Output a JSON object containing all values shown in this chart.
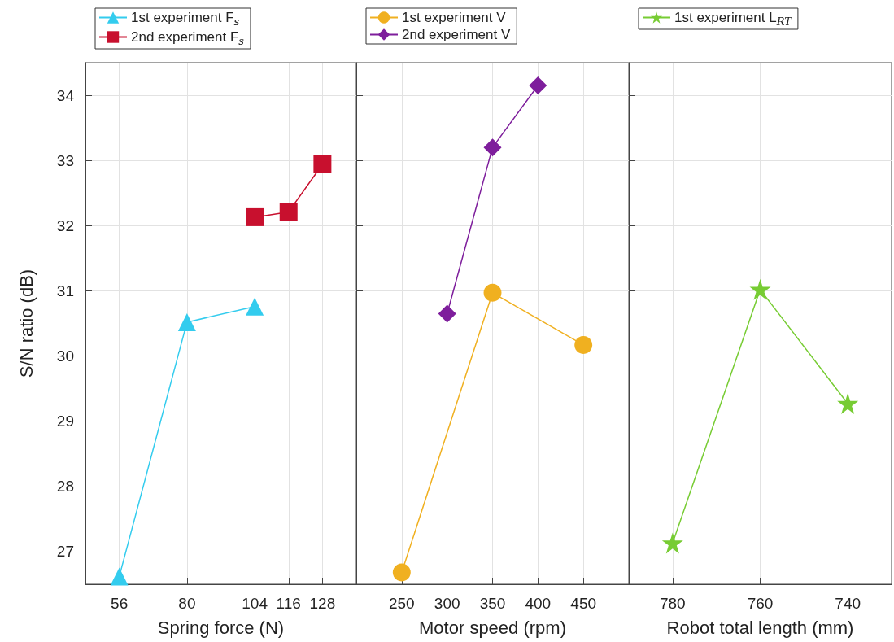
{
  "chart_data": [
    {
      "type": "line",
      "xlabel": "Spring force (N)",
      "ylabel": "S/N ratio (dB)",
      "xlim": [
        44,
        140
      ],
      "xticks": [
        56,
        80,
        104,
        116,
        128
      ],
      "ylim": [
        26.5,
        34.5
      ],
      "yticks": [
        27,
        28,
        29,
        30,
        31,
        32,
        33,
        34
      ],
      "grid": true,
      "legend": "top left",
      "series": [
        {
          "name": "1st experiment F$_{s}$",
          "color": "#33ccee",
          "marker": "triangle",
          "x": [
            56,
            80,
            104
          ],
          "values": [
            26.62,
            30.52,
            30.76
          ]
        },
        {
          "name": "2nd experiment F$_{s}$",
          "color": "#c8102e",
          "marker": "square",
          "x": [
            104,
            116,
            128
          ],
          "values": [
            32.13,
            32.21,
            32.94
          ]
        }
      ]
    },
    {
      "type": "line",
      "xlabel": "Motor speed (rpm)",
      "xlim": [
        200,
        500
      ],
      "xticks": [
        250,
        300,
        350,
        400,
        450
      ],
      "ylim": [
        26.5,
        34.5
      ],
      "yticks": [
        27,
        28,
        29,
        30,
        31,
        32,
        33,
        34
      ],
      "tick_labels": "x",
      "grid": true,
      "legend": "top left",
      "series": [
        {
          "name": "1st experiment V",
          "color": "#f0b020",
          "marker": "circle",
          "x": [
            250,
            350,
            450
          ],
          "values": [
            26.68,
            30.97,
            30.17
          ]
        },
        {
          "name": "2nd experiment V",
          "color": "#7e1e9c",
          "marker": "diamond",
          "x": [
            300,
            350,
            400
          ],
          "values": [
            30.65,
            33.2,
            34.15
          ]
        }
      ]
    },
    {
      "type": "line",
      "xlabel": "Robot total length (mm)",
      "xlim": [
        790,
        730
      ],
      "xticks": [
        780,
        760,
        740
      ],
      "ylim": [
        26.5,
        34.5
      ],
      "yticks": [
        27,
        28,
        29,
        30,
        31,
        32,
        33,
        34
      ],
      "tick_labels": "x",
      "grid": true,
      "legend": "top left",
      "series": [
        {
          "name": "1st experiment L$_{RT}$",
          "color": "#77cc33",
          "marker": "star",
          "x": [
            780,
            760,
            740
          ],
          "values": [
            27.13,
            31.02,
            29.27
          ]
        }
      ]
    }
  ]
}
